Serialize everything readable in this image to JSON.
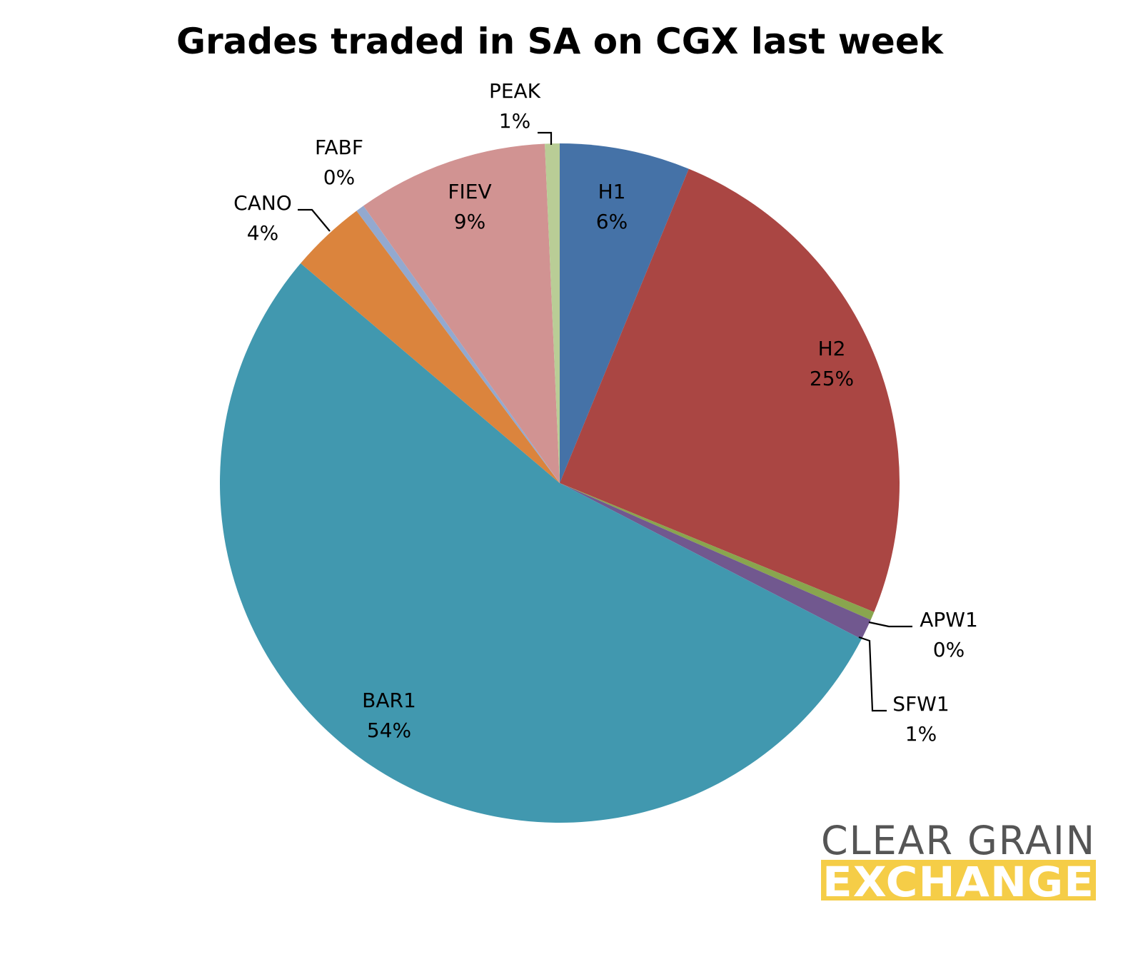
{
  "chart_data": {
    "type": "pie",
    "title": "Grades traded in SA on CGX last week",
    "slices": [
      {
        "name": "H1",
        "value": 6.2,
        "label_pct": "6%",
        "color": "#4572A7"
      },
      {
        "name": "H2",
        "value": 25.0,
        "label_pct": "25%",
        "color": "#AA4643"
      },
      {
        "name": "APW1",
        "value": 0.4,
        "label_pct": "0%",
        "color": "#89A54E"
      },
      {
        "name": "SFW1",
        "value": 1.0,
        "label_pct": "1%",
        "color": "#71588F"
      },
      {
        "name": "BAR1",
        "value": 53.6,
        "label_pct": "54%",
        "color": "#4198AF"
      },
      {
        "name": "CANO",
        "value": 3.6,
        "label_pct": "4%",
        "color": "#DB843D"
      },
      {
        "name": "FABF",
        "value": 0.4,
        "label_pct": "0%",
        "color": "#93A9CF"
      },
      {
        "name": "FIEV",
        "value": 9.1,
        "label_pct": "9%",
        "color": "#D19392"
      },
      {
        "name": "PEAK",
        "value": 0.7,
        "label_pct": "1%",
        "color": "#B9CD96"
      }
    ],
    "start_angle_deg": 0,
    "direction": "clockwise",
    "legend": "none"
  },
  "logo": {
    "line1": "CLEAR GRAIN",
    "line2": "EXCHANGE",
    "accent_color": "#F5CD47"
  }
}
